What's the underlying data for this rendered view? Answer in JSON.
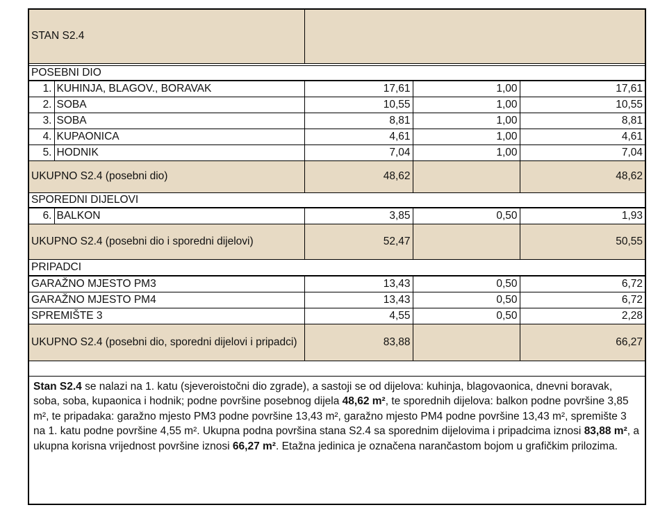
{
  "header": {
    "title": "STAN S2.4"
  },
  "sections": [
    {
      "title": "POSEBNI DIO",
      "items": [
        {
          "no": "1.",
          "name": "KUHINJA, BLAGOV., BORAVAK",
          "area": "17,61",
          "coef": "1,00",
          "value": "17,61"
        },
        {
          "no": "2.",
          "name": "SOBA",
          "area": "10,55",
          "coef": "1,00",
          "value": "10,55"
        },
        {
          "no": "3.",
          "name": "SOBA",
          "area": "8,81",
          "coef": "1,00",
          "value": "8,81"
        },
        {
          "no": "4.",
          "name": "KUPAONICA",
          "area": "4,61",
          "coef": "1,00",
          "value": "4,61"
        },
        {
          "no": "5.",
          "name": "HODNIK",
          "area": "7,04",
          "coef": "1,00",
          "value": "7,04"
        }
      ],
      "total": {
        "label": "UKUPNO S2.4 (posebni dio)",
        "area": "48,62",
        "value": "48,62"
      }
    },
    {
      "title": "SPOREDNI DIJELOVI",
      "items": [
        {
          "no": "6.",
          "name": "BALKON",
          "area": "3,85",
          "coef": "0,50",
          "value": "1,93"
        }
      ],
      "total": {
        "label": "UKUPNO S2.4 (posebni dio i sporedni dijelovi)",
        "area": "52,47",
        "value": "50,55"
      }
    },
    {
      "title": "PRIPADCI",
      "items": [
        {
          "name": "GARAŽNO MJESTO PM3",
          "area": "13,43",
          "coef": "0,50",
          "value": "6,72"
        },
        {
          "name": "GARAŽNO MJESTO PM4",
          "area": "13,43",
          "coef": "0,50",
          "value": "6,72"
        },
        {
          "name": "SPREMIŠTE 3",
          "area": "4,55",
          "coef": "0,50",
          "value": "2,28"
        }
      ],
      "total": {
        "label": "UKUPNO S2.4 (posebni dio, sporedni dijelovi i pripadci)",
        "area": "83,88",
        "value": "66,27"
      }
    }
  ],
  "description": [
    {
      "text": "Stan S2.4",
      "bold": true
    },
    {
      "text": " se nalazi na 1. katu (sjeveroistočni dio zgrade), a sastoji se od dijelova: kuhinja, blagovaonica, dnevni boravak, soba, soba, kupaonica i hodnik; podne površine posebnog dijela ",
      "bold": false
    },
    {
      "text": "48,62 m²",
      "bold": true
    },
    {
      "text": ", te sporednih dijelova: balkon podne površine 3,85 m², te pripadaka: garažno mjesto PM3 podne površine 13,43 m², garažno mjesto PM4 podne površine 13,43 m², spremište 3 na 1. katu podne površine 4,55 m². Ukupna podna površina stana S2.4 sa sporednim dijelovima i pripadcima iznosi ",
      "bold": false
    },
    {
      "text": "83,88 m²",
      "bold": true
    },
    {
      "text": ", a ukupna korisna vrijednost površine iznosi ",
      "bold": false
    },
    {
      "text": "66,27 m²",
      "bold": true
    },
    {
      "text": ". Etažna jedinica je označena narančastom bojom u grafičkim prilozima.",
      "bold": false
    }
  ]
}
